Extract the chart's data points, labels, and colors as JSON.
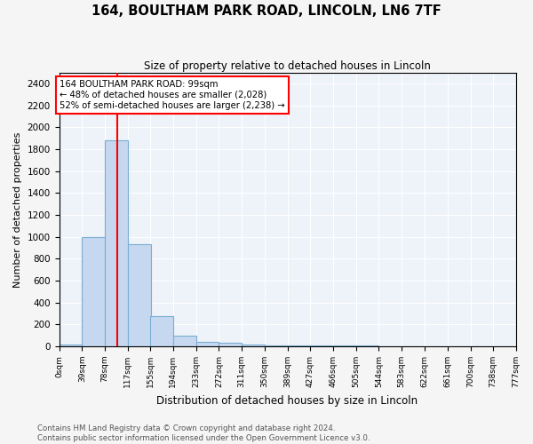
{
  "title": "164, BOULTHAM PARK ROAD, LINCOLN, LN6 7TF",
  "subtitle": "Size of property relative to detached houses in Lincoln",
  "xlabel": "Distribution of detached houses by size in Lincoln",
  "ylabel": "Number of detached properties",
  "bar_color": "#c5d8f0",
  "bar_edge_color": "#7aadd4",
  "background_color": "#eef2f9",
  "grid_color": "#ffffff",
  "fig_facecolor": "#f5f5f5",
  "property_line_x": 99,
  "annotation_line1": "164 BOULTHAM PARK ROAD: 99sqm",
  "annotation_line2": "← 48% of detached houses are smaller (2,028)",
  "annotation_line3": "52% of semi-detached houses are larger (2,238) →",
  "bin_edges": [
    0,
    39,
    78,
    117,
    155,
    194,
    233,
    272,
    311,
    350,
    389,
    427,
    466,
    505,
    544,
    583,
    622,
    661,
    700,
    738,
    777
  ],
  "bin_labels": [
    "0sqm",
    "39sqm",
    "78sqm",
    "117sqm",
    "155sqm",
    "194sqm",
    "233sqm",
    "272sqm",
    "311sqm",
    "350sqm",
    "389sqm",
    "427sqm",
    "466sqm",
    "505sqm",
    "544sqm",
    "583sqm",
    "622sqm",
    "661sqm",
    "700sqm",
    "738sqm",
    "777sqm"
  ],
  "bar_heights": [
    20,
    1000,
    1880,
    930,
    280,
    100,
    40,
    30,
    20,
    10,
    5,
    5,
    5,
    5,
    0,
    0,
    0,
    0,
    0,
    0
  ],
  "ylim": [
    0,
    2500
  ],
  "yticks": [
    0,
    200,
    400,
    600,
    800,
    1000,
    1200,
    1400,
    1600,
    1800,
    2000,
    2200,
    2400
  ],
  "footnote1": "Contains HM Land Registry data © Crown copyright and database right 2024.",
  "footnote2": "Contains public sector information licensed under the Open Government Licence v3.0."
}
